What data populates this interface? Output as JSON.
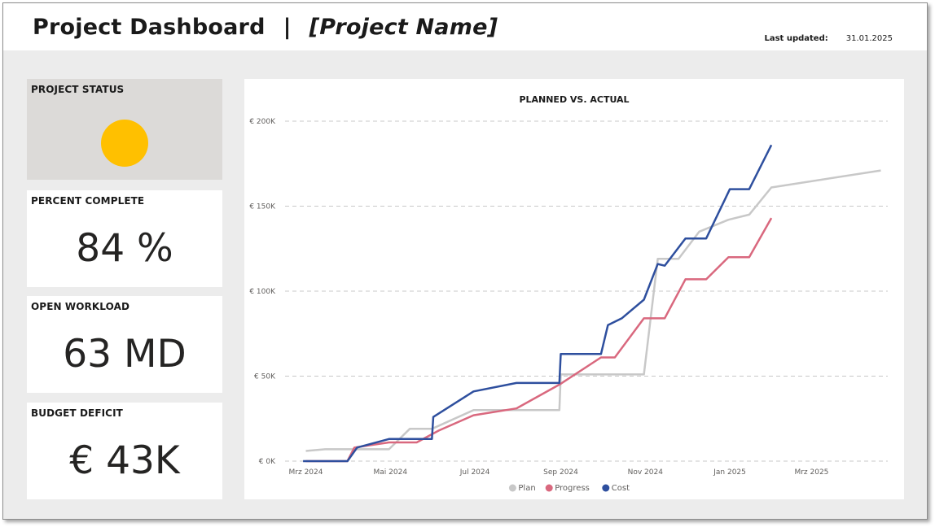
{
  "header": {
    "title": "Project Dashboard",
    "separator": "|",
    "project_name": "[Project Name]",
    "last_updated_label": "Last updated:",
    "last_updated_value": "31.01.2025"
  },
  "kpis": {
    "status": {
      "label": "PROJECT STATUS",
      "indicator_color": "#ffc000"
    },
    "percent_complete": {
      "label": "PERCENT COMPLETE",
      "value": "84 %"
    },
    "open_workload": {
      "label": "OPEN WORKLOAD",
      "value": "63 MD"
    },
    "budget_deficit": {
      "label": "BUDGET DEFICIT",
      "value": "€ 43K"
    }
  },
  "chart_data": {
    "type": "line",
    "title": "PLANNED VS. ACTUAL",
    "xlabel": "",
    "ylabel": "",
    "x_axis": {
      "type": "date",
      "range": [
        "2024-02-15",
        "2025-04-25"
      ]
    },
    "xticks": [
      {
        "date": "2024-03-01",
        "label": "Mrz 2024"
      },
      {
        "date": "2024-05-01",
        "label": "Mai 2024"
      },
      {
        "date": "2024-07-01",
        "label": "Jul 2024"
      },
      {
        "date": "2024-09-01",
        "label": "Sep 2024"
      },
      {
        "date": "2024-11-01",
        "label": "Nov 2024"
      },
      {
        "date": "2025-01-01",
        "label": "Jan 2025"
      },
      {
        "date": "2025-03-01",
        "label": "Mrz 2025"
      }
    ],
    "yticks": [
      {
        "value": 0,
        "label": "€ 0K"
      },
      {
        "value": 50000,
        "label": "€ 50K"
      },
      {
        "value": 100000,
        "label": "€ 100K"
      },
      {
        "value": 150000,
        "label": "€ 150K"
      },
      {
        "value": 200000,
        "label": "€ 200K"
      }
    ],
    "ylim": [
      0,
      200000
    ],
    "grid": "horizontal-dashed",
    "legend": "bottom-center",
    "series": [
      {
        "name": "Plan",
        "color": "#c8c8c8",
        "points": [
          [
            "2024-03-01",
            6000
          ],
          [
            "2024-03-15",
            7000
          ],
          [
            "2024-04-30",
            7000
          ],
          [
            "2024-05-15",
            19000
          ],
          [
            "2024-05-31",
            19000
          ],
          [
            "2024-06-30",
            30000
          ],
          [
            "2024-08-31",
            30000
          ],
          [
            "2024-09-01",
            51000
          ],
          [
            "2024-10-20",
            51000
          ],
          [
            "2024-10-31",
            51000
          ],
          [
            "2024-11-10",
            119000
          ],
          [
            "2024-11-25",
            119000
          ],
          [
            "2024-12-10",
            135000
          ],
          [
            "2024-12-31",
            142000
          ],
          [
            "2025-01-15",
            145000
          ],
          [
            "2025-01-31",
            161000
          ],
          [
            "2025-04-20",
            171000
          ]
        ]
      },
      {
        "name": "Progress",
        "color": "#d9687e",
        "points": [
          [
            "2024-03-01",
            0
          ],
          [
            "2024-03-31",
            0
          ],
          [
            "2024-04-05",
            8000
          ],
          [
            "2024-04-30",
            11000
          ],
          [
            "2024-05-20",
            11000
          ],
          [
            "2024-06-05",
            18000
          ],
          [
            "2024-06-30",
            27000
          ],
          [
            "2024-07-31",
            31000
          ],
          [
            "2024-08-31",
            45000
          ],
          [
            "2024-09-30",
            61000
          ],
          [
            "2024-10-10",
            61000
          ],
          [
            "2024-10-31",
            84000
          ],
          [
            "2024-11-15",
            84000
          ],
          [
            "2024-11-30",
            107000
          ],
          [
            "2024-12-15",
            107000
          ],
          [
            "2024-12-31",
            120000
          ],
          [
            "2025-01-15",
            120000
          ],
          [
            "2025-01-31",
            143000
          ]
        ]
      },
      {
        "name": "Cost",
        "color": "#2e4f9e",
        "points": [
          [
            "2024-02-28",
            0
          ],
          [
            "2024-03-31",
            0
          ],
          [
            "2024-04-07",
            8000
          ],
          [
            "2024-04-30",
            13000
          ],
          [
            "2024-05-31",
            13000
          ],
          [
            "2024-06-01",
            26000
          ],
          [
            "2024-06-30",
            41000
          ],
          [
            "2024-07-31",
            46000
          ],
          [
            "2024-08-31",
            46000
          ],
          [
            "2024-09-01",
            63000
          ],
          [
            "2024-09-30",
            63000
          ],
          [
            "2024-10-05",
            80000
          ],
          [
            "2024-10-15",
            84000
          ],
          [
            "2024-10-31",
            95000
          ],
          [
            "2024-11-10",
            116000
          ],
          [
            "2024-11-15",
            115000
          ],
          [
            "2024-11-30",
            131000
          ],
          [
            "2024-12-15",
            131000
          ],
          [
            "2025-01-01",
            160000
          ],
          [
            "2025-01-15",
            160000
          ],
          [
            "2025-01-31",
            186000
          ]
        ]
      }
    ]
  }
}
